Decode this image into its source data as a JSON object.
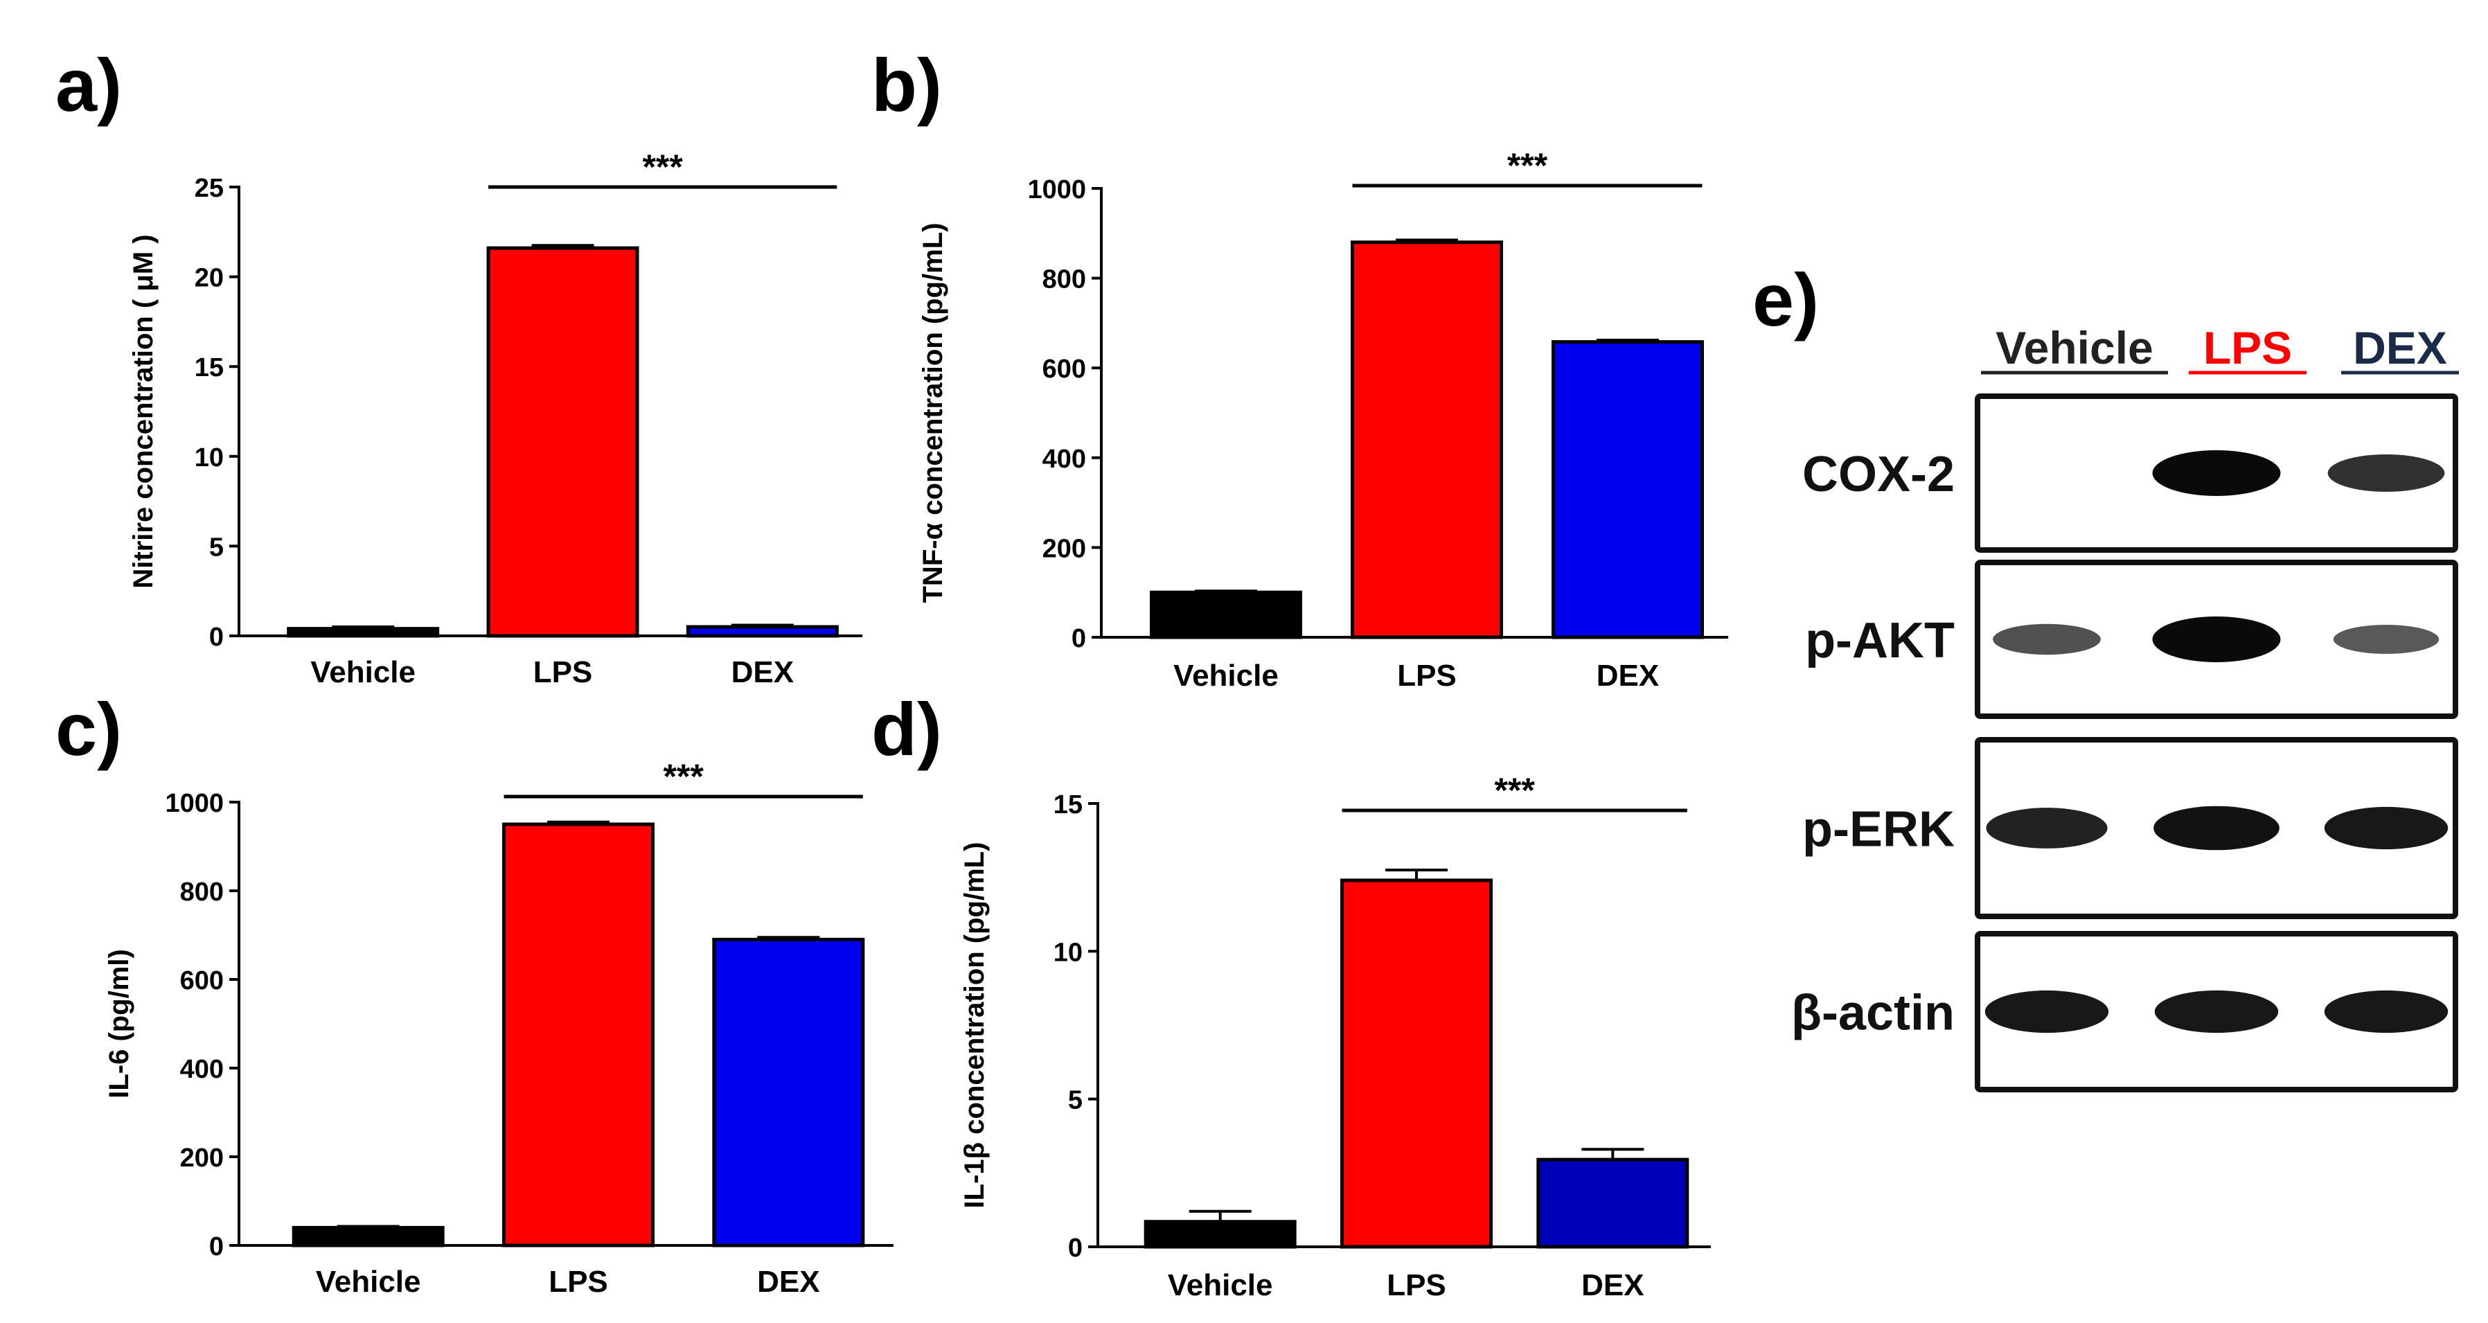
{
  "chart_data": [
    {
      "panel": "a)",
      "type": "bar",
      "categories": [
        "Vehicle",
        "LPS",
        "DEX"
      ],
      "values": [
        0.4,
        21.6,
        0.5
      ],
      "errors": [
        0.1,
        0.15,
        0.1
      ],
      "colors": [
        "#000000",
        "#ff0000",
        "#0000ee"
      ],
      "ylabel": "Nitrire concentration ( μM )",
      "ylim": [
        0,
        25
      ],
      "yticks": [
        0,
        5,
        10,
        15,
        20,
        25
      ],
      "significance": "***",
      "significance_span": [
        "LPS",
        "DEX"
      ]
    },
    {
      "panel": "b)",
      "type": "bar",
      "categories": [
        "Vehicle",
        "LPS",
        "DEX"
      ],
      "values": [
        100,
        880,
        658
      ],
      "errors": [
        3,
        5,
        4
      ],
      "colors": [
        "#000000",
        "#ff0000",
        "#0000ee"
      ],
      "ylabel": "TNF-α concentration (pg/mL)",
      "ylim": [
        0,
        1000
      ],
      "yticks": [
        0,
        200,
        400,
        600,
        800,
        1000
      ],
      "significance": "***",
      "significance_span": [
        "LPS",
        "DEX"
      ]
    },
    {
      "panel": "c)",
      "type": "bar",
      "categories": [
        "Vehicle",
        "LPS",
        "DEX"
      ],
      "values": [
        40,
        950,
        690
      ],
      "errors": [
        3,
        5,
        5
      ],
      "colors": [
        "#000000",
        "#ff0000",
        "#0000ee"
      ],
      "ylabel": "IL-6 (pg/ml)",
      "ylim": [
        0,
        1000
      ],
      "yticks": [
        0,
        200,
        400,
        600,
        800,
        1000
      ],
      "significance": "***",
      "significance_span": [
        "LPS",
        "DEX"
      ]
    },
    {
      "panel": "d)",
      "type": "bar",
      "categories": [
        "Vehicle",
        "LPS",
        "DEX"
      ],
      "values": [
        0.85,
        12.4,
        2.95
      ],
      "errors": [
        0.35,
        0.35,
        0.35
      ],
      "colors": [
        "#000000",
        "#ff0000",
        "#0000bb"
      ],
      "ylabel": "IL-1β concentration (pg/mL)",
      "ylim": [
        0,
        15
      ],
      "yticks": [
        0,
        5,
        10,
        15
      ],
      "significance": "***",
      "significance_span": [
        "LPS",
        "DEX"
      ]
    }
  ],
  "blot": {
    "panel": "e)",
    "lanes": [
      {
        "label": "Vehicle",
        "color": "#222222"
      },
      {
        "label": "LPS",
        "color": "#ff0000"
      },
      {
        "label": "DEX",
        "color": "#1a2a4a"
      }
    ],
    "rows": [
      {
        "protein": "COX-2",
        "intensity": [
          0.0,
          1.0,
          0.75
        ]
      },
      {
        "protein": "p-AKT",
        "intensity": [
          0.55,
          1.0,
          0.5
        ]
      },
      {
        "protein": "p-ERK",
        "intensity": [
          0.85,
          0.95,
          0.9
        ]
      },
      {
        "protein": "β-actin",
        "intensity": [
          0.9,
          0.9,
          0.9
        ]
      }
    ]
  }
}
